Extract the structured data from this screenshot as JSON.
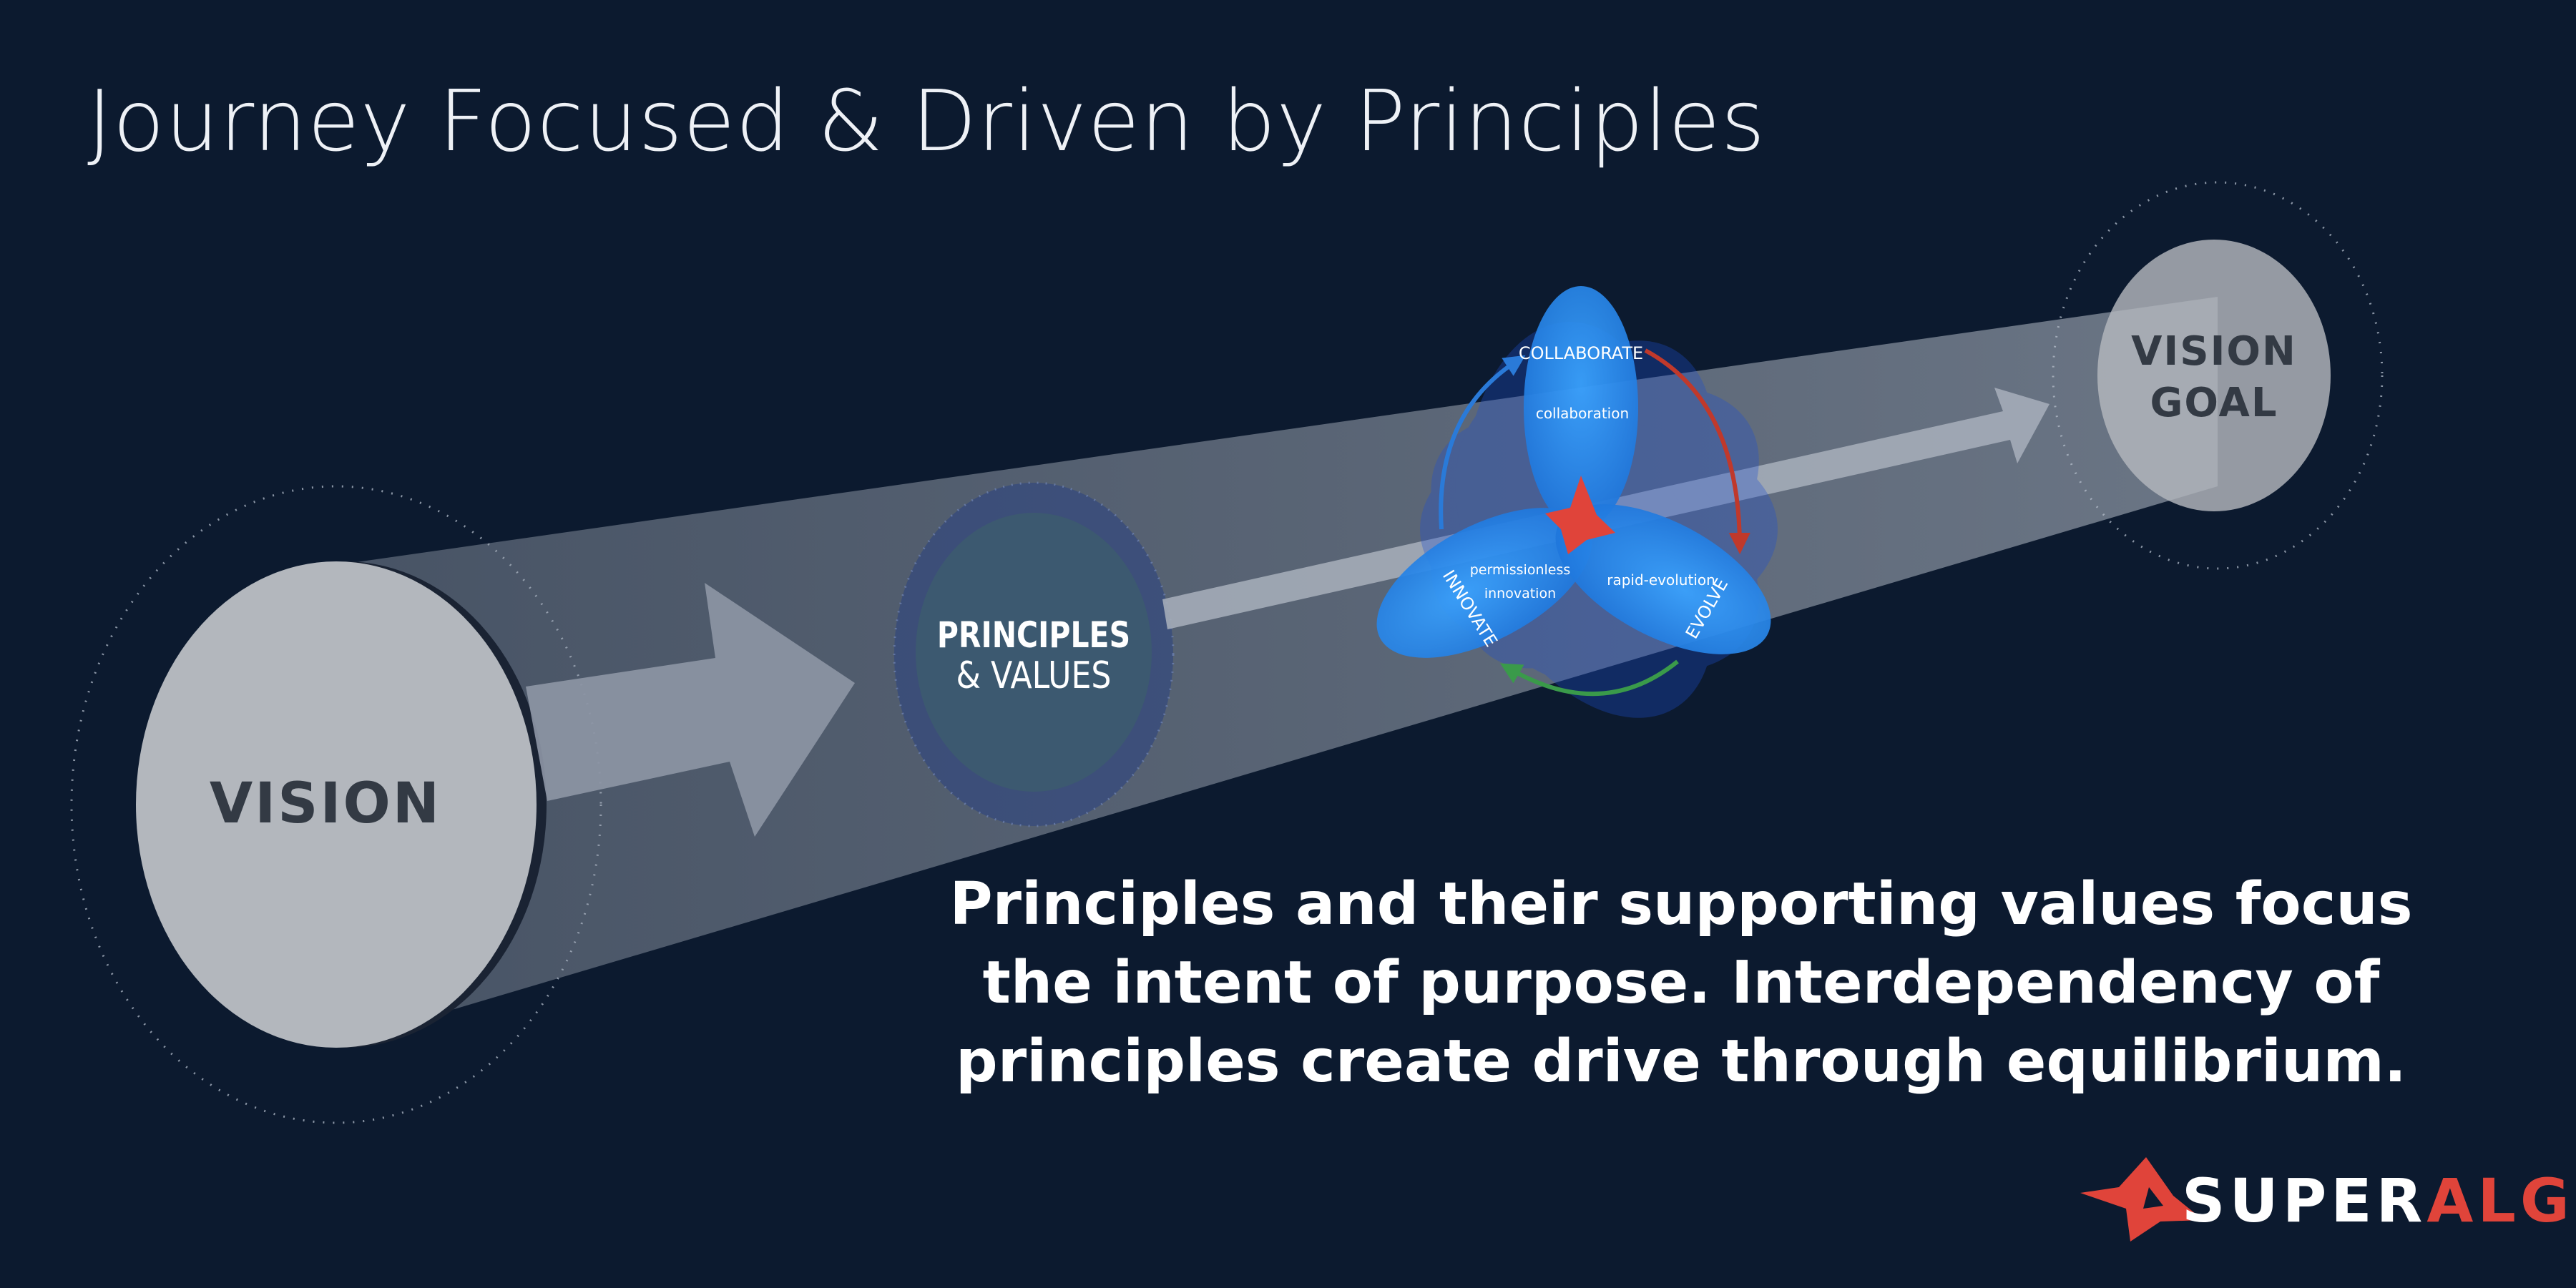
{
  "title": "Journey Focused & Driven by Principles",
  "vision_label": "VISION",
  "principles": {
    "line1": "PRINCIPLES",
    "line2": "& VALUES"
  },
  "goal": {
    "line1": "VISION",
    "line2": "GOAL"
  },
  "petals": {
    "collaborate": {
      "name": "COLLABORATE",
      "value": "collaboration"
    },
    "innovate": {
      "name": "INNOVATE",
      "value_line1": "permissionless",
      "value_line2": "innovation"
    },
    "evolve": {
      "name": "EVOLVE",
      "value": "rapid-evolution"
    }
  },
  "caption": "Principles and their supporting values focus the intent of purpose.  Interdependency of principles create drive through equilibrium.",
  "logo": {
    "part1": "SUPER",
    "part2": "ALGOS"
  },
  "colors": {
    "background": "#0c1a2f",
    "vision_disc": "#b3b7bd",
    "principles_disc": "#3c5a70",
    "petal_blue": "#1f86e3",
    "arrow_red": "#c0392b",
    "arrow_green": "#3a9a4a",
    "brand_red": "#e0443a"
  }
}
